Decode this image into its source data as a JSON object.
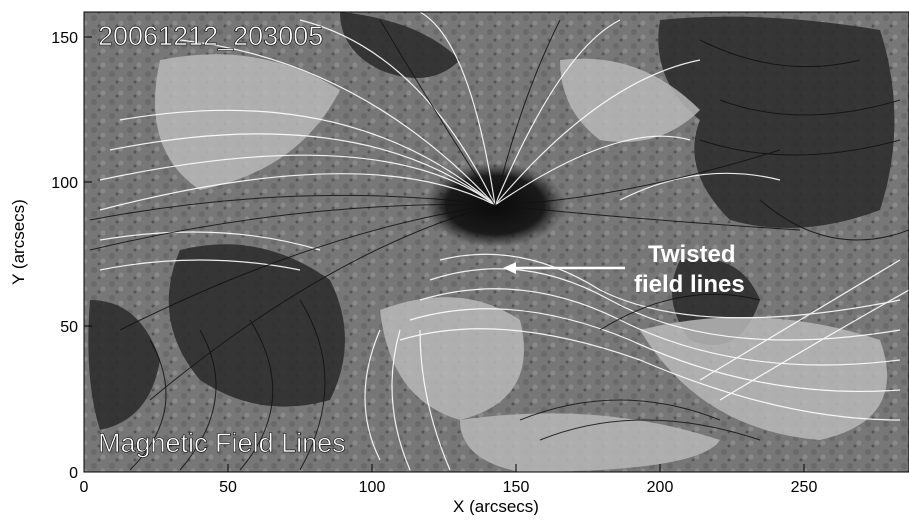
{
  "image": {
    "timestamp_label": "20061212_203005",
    "title_label": "Magnetic Field Lines",
    "annotation": {
      "line1": "Twisted",
      "line2": "field lines"
    }
  },
  "axes": {
    "xlabel": "X (arcsecs)",
    "ylabel": "Y (arcsecs)",
    "x_ticks": [
      "0",
      "50",
      "100",
      "150",
      "200",
      "250"
    ],
    "y_ticks": [
      "0",
      "50",
      "100",
      "150"
    ]
  },
  "colors": {
    "background_gray": "#7a7a7a",
    "dark_region": "#2a2a2a",
    "light_region": "#bdbdbd",
    "white_lines": "#ffffff",
    "black_lines": "#111111",
    "annotation_text": "#ffffff"
  }
}
